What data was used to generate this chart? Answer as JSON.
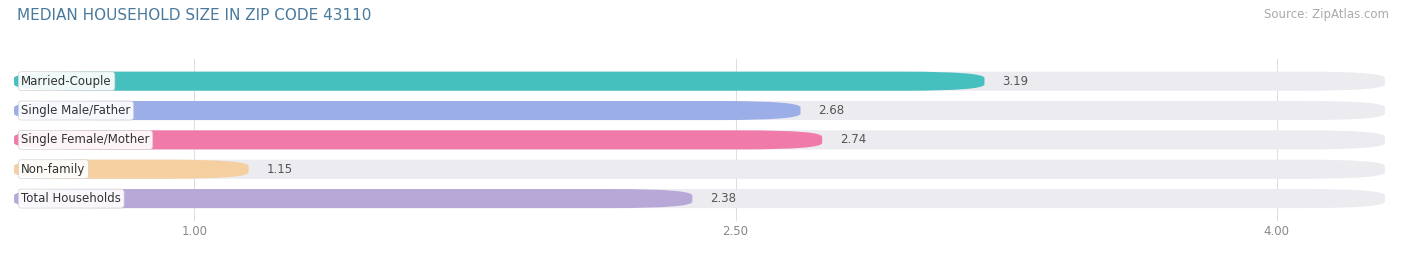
{
  "title": "MEDIAN HOUSEHOLD SIZE IN ZIP CODE 43110",
  "source": "Source: ZipAtlas.com",
  "categories": [
    "Married-Couple",
    "Single Male/Father",
    "Single Female/Mother",
    "Non-family",
    "Total Households"
  ],
  "values": [
    3.19,
    2.68,
    2.74,
    1.15,
    2.38
  ],
  "bar_colors": [
    "#45c0bf",
    "#9baee8",
    "#f07aaa",
    "#f5cfa0",
    "#b8a8d8"
  ],
  "xmin": 0.5,
  "xmax": 4.3,
  "data_min": 0.5,
  "xticks": [
    1.0,
    2.5,
    4.0
  ],
  "xtick_labels": [
    "1.00",
    "2.50",
    "4.00"
  ],
  "background_color": "#ffffff",
  "bar_background_color": "#ebebf0",
  "title_color": "#4a7a9b",
  "source_color": "#aaaaaa",
  "title_fontsize": 11,
  "source_fontsize": 8.5,
  "label_fontsize": 8.5,
  "value_fontsize": 8.5,
  "bar_height": 0.65
}
